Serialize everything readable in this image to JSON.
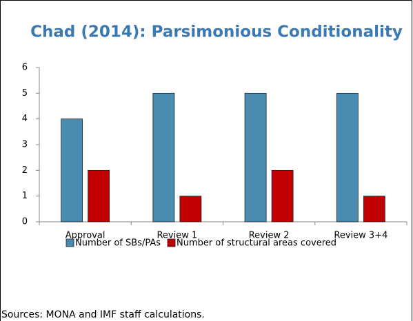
{
  "chart_data": {
    "type": "bar",
    "title": "Chad (2014): Parsimonious Conditionality",
    "categories": [
      "Approval",
      "Review 1",
      "Review 2",
      "Review 3+4"
    ],
    "series": [
      {
        "name": "Number of SBs/PAs",
        "color": "#4a8bb1",
        "values": [
          4,
          5,
          5,
          5
        ]
      },
      {
        "name": "Number of structural areas covered",
        "color": "#c00000",
        "values": [
          2,
          1,
          2,
          1
        ]
      }
    ],
    "ylim": [
      0,
      6
    ],
    "yticks": [
      0,
      1,
      2,
      3,
      4,
      5,
      6
    ],
    "grid": false,
    "source": "Sources: MONA and IMF staff calculations."
  }
}
